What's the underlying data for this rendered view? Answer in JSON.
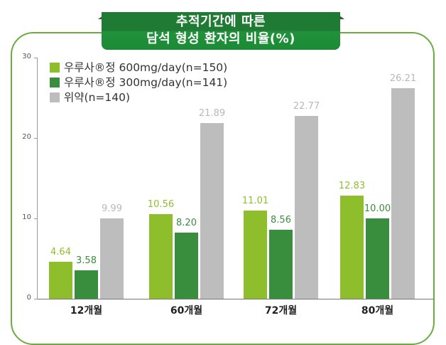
{
  "banner": {
    "line1": "추적기간에 따른",
    "line2": "담석 형성 환자의 비율(%)"
  },
  "colors": {
    "series_600": "#8fbe2c",
    "series_300": "#388e3c",
    "placebo": "#bdbdbd",
    "frame": "#6aac3e",
    "banner": "#1f7a33"
  },
  "legend": [
    {
      "label": "우루사®정 600mg/day(n=150)",
      "color": "#8fbe2c"
    },
    {
      "label": "우루사®정 300mg/day(n=141)",
      "color": "#388e3c"
    },
    {
      "label": "위약(n=140)",
      "color": "#bdbdbd"
    }
  ],
  "yaxis": {
    "ticks": [
      "0",
      "10",
      "20",
      "30"
    ]
  },
  "chart_data": {
    "type": "bar",
    "title": "추적기간에 따른 담석 형성 환자의 비율(%)",
    "xlabel": "",
    "ylabel": "",
    "ylim": [
      0,
      30
    ],
    "yticks": [
      0,
      10,
      20,
      30
    ],
    "grid": false,
    "legend_position": "top-left",
    "categories": [
      "12개월",
      "60개월",
      "72개월",
      "80개월"
    ],
    "series": [
      {
        "name": "우루사®정 600mg/day(n=150)",
        "color": "#8fbe2c",
        "values": [
          4.64,
          10.56,
          11.01,
          12.83
        ],
        "labels": [
          "4.64",
          "10.56",
          "11.01",
          "12.83"
        ]
      },
      {
        "name": "우루사®정 300mg/day(n=141)",
        "color": "#388e3c",
        "values": [
          3.58,
          8.2,
          8.56,
          10.0
        ],
        "labels": [
          "3.58",
          "8.20",
          "8.56",
          "10.00"
        ]
      },
      {
        "name": "위약(n=140)",
        "color": "#bdbdbd",
        "values": [
          9.99,
          21.89,
          22.77,
          26.21
        ],
        "labels": [
          "9.99",
          "21.89",
          "22.77",
          "26.21"
        ]
      }
    ]
  }
}
